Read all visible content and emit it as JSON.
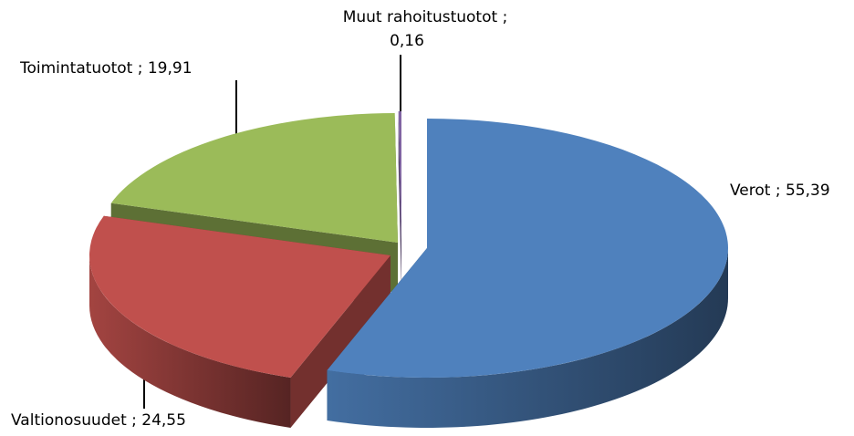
{
  "chart_data": {
    "type": "pie",
    "values": [
      55.39,
      24.55,
      19.91,
      0.16
    ],
    "value_labels": [
      [
        "Verot ; 55,39"
      ],
      [
        "Valtionosuudet ; 24,55"
      ],
      [
        "Toimintatuotot ; 19,91"
      ],
      [
        "Muut rahoitustuotot ;",
        "0,16"
      ]
    ],
    "colors": [
      "#4f81bd",
      "#c0504d",
      "#9bbb59",
      "#8064a2"
    ]
  }
}
